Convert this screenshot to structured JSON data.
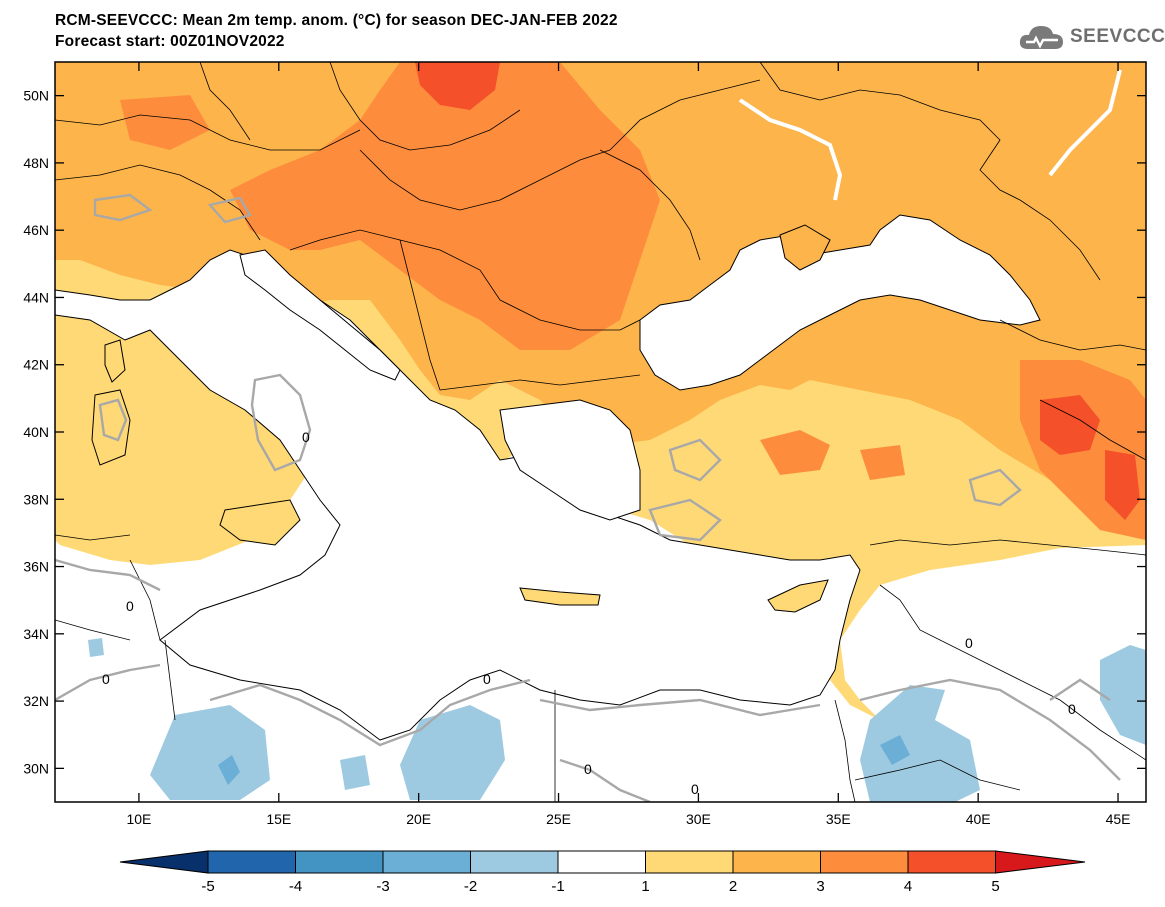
{
  "header": {
    "title_line1": "RCM-SEEVCCC: Mean 2m temp. anom. (°C) for season DEC-JAN-FEB 2022",
    "title_line2": "Forecast start: 00Z01NOV2022",
    "logo_text": "SEEVCCC"
  },
  "map": {
    "lon_range": [
      7,
      46
    ],
    "lat_range": [
      29,
      51
    ],
    "lat_ticks": [
      {
        "value": 50,
        "label": "50N"
      },
      {
        "value": 48,
        "label": "48N"
      },
      {
        "value": 46,
        "label": "46N"
      },
      {
        "value": 44,
        "label": "44N"
      },
      {
        "value": 42,
        "label": "42N"
      },
      {
        "value": 40,
        "label": "40N"
      },
      {
        "value": 38,
        "label": "38N"
      },
      {
        "value": 36,
        "label": "36N"
      },
      {
        "value": 34,
        "label": "34N"
      },
      {
        "value": 32,
        "label": "32N"
      },
      {
        "value": 30,
        "label": "30N"
      }
    ],
    "lon_ticks": [
      {
        "value": 10,
        "label": "10E"
      },
      {
        "value": 15,
        "label": "15E"
      },
      {
        "value": 20,
        "label": "20E"
      },
      {
        "value": 25,
        "label": "25E"
      },
      {
        "value": 30,
        "label": "30E"
      },
      {
        "value": 35,
        "label": "35E"
      },
      {
        "value": 40,
        "label": "40E"
      },
      {
        "value": 45,
        "label": "45E"
      }
    ],
    "contour_label": "0"
  },
  "colorbar": {
    "levels": [
      "-5",
      "-4",
      "-3",
      "-2",
      "-1",
      "1",
      "2",
      "3",
      "4",
      "5"
    ],
    "colors": {
      "below_-5": "#08306b",
      "-5_-4": "#2166ac",
      "-4_-3": "#4393c3",
      "-3_-2": "#6baed6",
      "-2_-1": "#9ecae1",
      "-1_1": "#ffffff",
      "1_2": "#fed976",
      "2_3": "#fdb44b",
      "3_4": "#fd8d3c",
      "4_5": "#f4502a",
      "above_5": "#d7191c"
    }
  }
}
